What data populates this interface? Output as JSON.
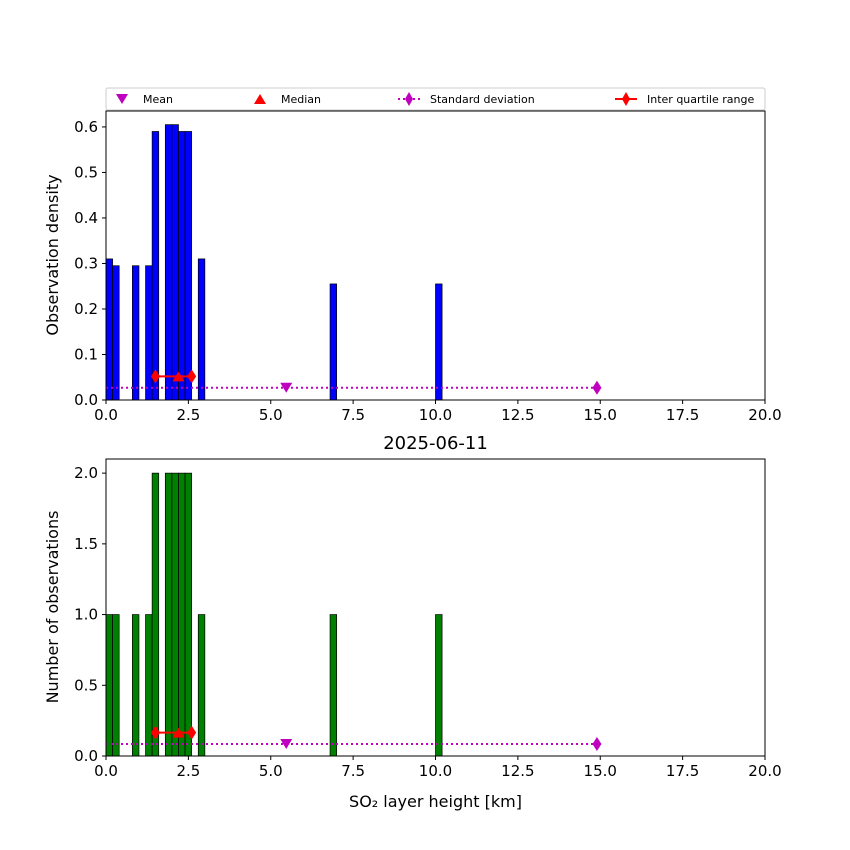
{
  "colors": {
    "density_bars": "#0000ff",
    "count_bars": "#008000",
    "mean": "#bf00bf",
    "median": "#ff0000",
    "std": "#bf00bf",
    "iqr": "#ff0000"
  },
  "legend": {
    "placement": "top, above upper plot",
    "items": [
      {
        "key": "mean",
        "label": "Mean",
        "marker": "triangle-down"
      },
      {
        "key": "median",
        "label": "Median",
        "marker": "triangle-up"
      },
      {
        "key": "std",
        "label": "Standard deviation",
        "marker": "diamond-dotted-line"
      },
      {
        "key": "iqr",
        "label": "Inter quartile range",
        "marker": "diamond-solid-line"
      }
    ]
  },
  "chart_data": [
    {
      "type": "bar",
      "title": "",
      "xlabel": "",
      "ylabel": "Observation density",
      "xlim": [
        0,
        20
      ],
      "ylim": [
        0,
        0.635
      ],
      "xticks": [
        0,
        2.5,
        5,
        7.5,
        10,
        12.5,
        15,
        17.5,
        20
      ],
      "xtick_labels": [
        "0.0",
        "2.5",
        "5.0",
        "7.5",
        "10.0",
        "12.5",
        "15.0",
        "17.5",
        "20.0"
      ],
      "yticks": [
        0,
        0.1,
        0.2,
        0.3,
        0.4,
        0.5,
        0.6
      ],
      "ytick_labels": [
        "0.0",
        "0.1",
        "0.2",
        "0.3",
        "0.4",
        "0.5",
        "0.6"
      ],
      "bar_width_km": 0.2,
      "bars": [
        {
          "x": 0.1,
          "value": 0.31
        },
        {
          "x": 0.3,
          "value": 0.295
        },
        {
          "x": 0.9,
          "value": 0.295
        },
        {
          "x": 1.3,
          "value": 0.295
        },
        {
          "x": 1.5,
          "value": 0.59
        },
        {
          "x": 1.9,
          "value": 0.605
        },
        {
          "x": 2.1,
          "value": 0.605
        },
        {
          "x": 2.3,
          "value": 0.59
        },
        {
          "x": 2.5,
          "value": 0.59
        },
        {
          "x": 2.9,
          "value": 0.31
        },
        {
          "x": 6.9,
          "value": 0.255
        },
        {
          "x": 10.1,
          "value": 0.255
        }
      ],
      "statistics": {
        "mean": {
          "x": 5.47,
          "y": 0.027
        },
        "median": {
          "x": 2.2,
          "y": 0.052
        },
        "std": {
          "x_start": 0.0,
          "x_end": 14.9,
          "y": 0.027
        },
        "iqr": {
          "x_start": 1.5,
          "x_end": 2.6,
          "y": 0.052
        }
      }
    },
    {
      "type": "bar",
      "title": "2025-06-11",
      "xlabel": "SO₂ layer height [km]",
      "ylabel": "Number of observations",
      "xlim": [
        0,
        20
      ],
      "ylim": [
        0,
        2.1
      ],
      "xticks": [
        0,
        2.5,
        5,
        7.5,
        10,
        12.5,
        15,
        17.5,
        20
      ],
      "xtick_labels": [
        "0.0",
        "2.5",
        "5.0",
        "7.5",
        "10.0",
        "12.5",
        "15.0",
        "17.5",
        "20.0"
      ],
      "yticks": [
        0,
        0.5,
        1.0,
        1.5,
        2.0
      ],
      "ytick_labels": [
        "0.0",
        "0.5",
        "1.0",
        "1.5",
        "2.0"
      ],
      "bar_width_km": 0.2,
      "bars": [
        {
          "x": 0.1,
          "value": 1
        },
        {
          "x": 0.3,
          "value": 1
        },
        {
          "x": 0.9,
          "value": 1
        },
        {
          "x": 1.3,
          "value": 1
        },
        {
          "x": 1.5,
          "value": 2
        },
        {
          "x": 1.9,
          "value": 2
        },
        {
          "x": 2.1,
          "value": 2
        },
        {
          "x": 2.3,
          "value": 2
        },
        {
          "x": 2.5,
          "value": 2
        },
        {
          "x": 2.9,
          "value": 1
        },
        {
          "x": 6.9,
          "value": 1
        },
        {
          "x": 10.1,
          "value": 1
        }
      ],
      "statistics": {
        "mean": {
          "x": 5.47,
          "y": 0.085
        },
        "median": {
          "x": 2.2,
          "y": 0.165
        },
        "std": {
          "x_start": 0.0,
          "x_end": 14.9,
          "y": 0.085
        },
        "iqr": {
          "x_start": 1.5,
          "x_end": 2.6,
          "y": 0.165
        }
      }
    }
  ]
}
